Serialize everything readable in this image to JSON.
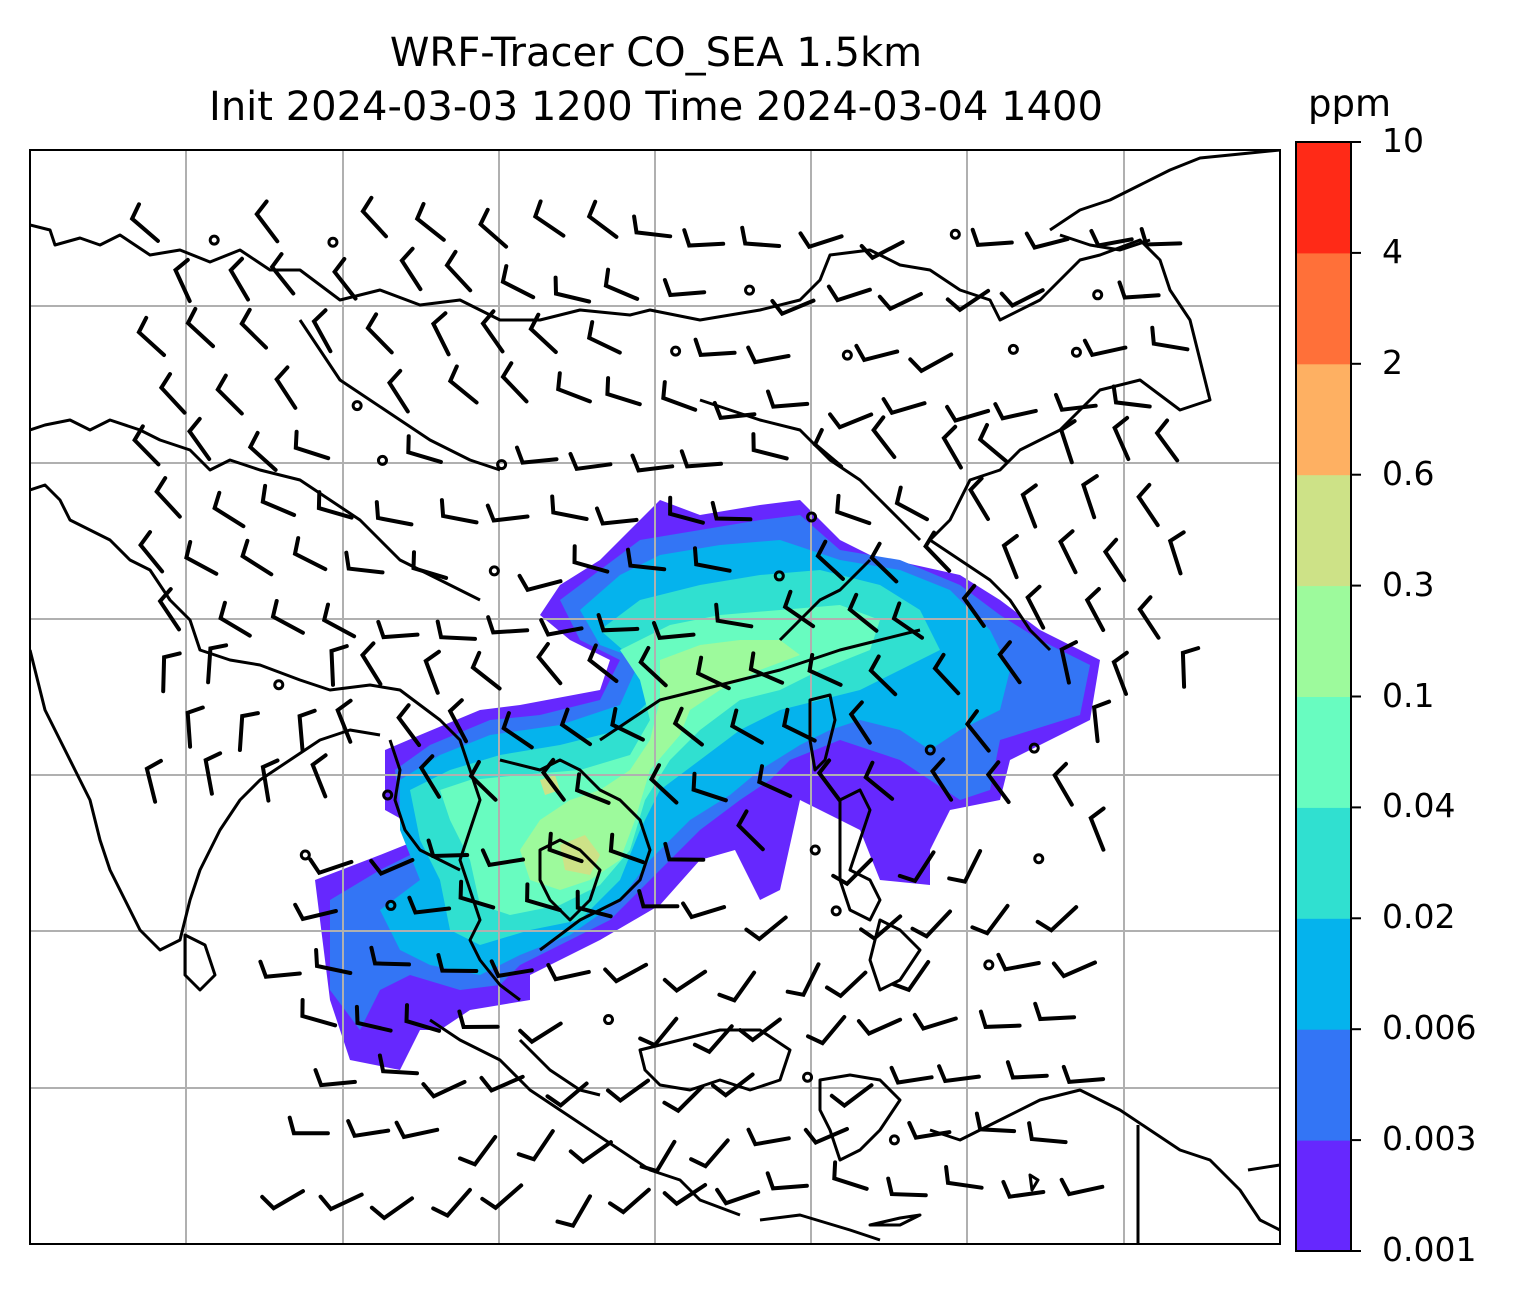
{
  "title": {
    "line1": "WRF-Tracer CO_SEA 1.5km",
    "line2": "Init 2024-03-03 1200 Time 2024-03-04 1400"
  },
  "colorbar": {
    "unit": "ppm",
    "levels": [
      "0.001",
      "0.003",
      "0.006",
      "0.02",
      "0.04",
      "0.1",
      "0.3",
      "0.6",
      "2",
      "4",
      "10"
    ],
    "colors": [
      "#6628fe",
      "#3375f5",
      "#05b3ed",
      "#30e0d0",
      "#68fcc0",
      "#9dfa9c",
      "#cde287",
      "#feb062",
      "#ff7039",
      "#ff2a17"
    ]
  },
  "map": {
    "gridlines": true,
    "gridline_color": "#b0b0b0",
    "coastline_color": "#000000",
    "barb_color": "#000000"
  }
}
